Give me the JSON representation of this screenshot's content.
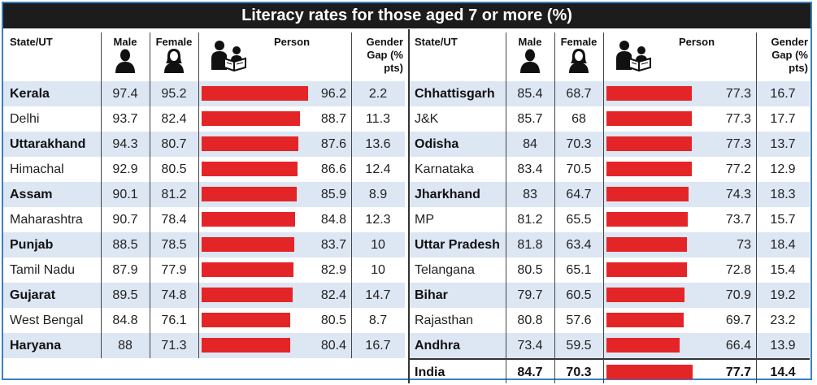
{
  "chart_data": {
    "type": "table",
    "title": "Literacy rates for those aged 7 or more (%)",
    "columns": [
      "State/UT",
      "Male",
      "Female",
      "Person",
      "Gender Gap (% pts)"
    ],
    "rows_left": [
      {
        "state": "Kerala",
        "male": "97.4",
        "female": "95.2",
        "person": "96.2",
        "gap": "2.2"
      },
      {
        "state": "Delhi",
        "male": "93.7",
        "female": "82.4",
        "person": "88.7",
        "gap": "11.3"
      },
      {
        "state": "Uttarakhand",
        "male": "94.3",
        "female": "80.7",
        "person": "87.6",
        "gap": "13.6"
      },
      {
        "state": "Himachal",
        "male": "92.9",
        "female": "80.5",
        "person": "86.6",
        "gap": "12.4"
      },
      {
        "state": "Assam",
        "male": "90.1",
        "female": "81.2",
        "person": "85.9",
        "gap": "8.9"
      },
      {
        "state": "Maharashtra",
        "male": "90.7",
        "female": "78.4",
        "person": "84.8",
        "gap": "12.3"
      },
      {
        "state": "Punjab",
        "male": "88.5",
        "female": "78.5",
        "person": "83.7",
        "gap": "10"
      },
      {
        "state": "Tamil Nadu",
        "male": "87.9",
        "female": "77.9",
        "person": "82.9",
        "gap": "10"
      },
      {
        "state": "Gujarat",
        "male": "89.5",
        "female": "74.8",
        "person": "82.4",
        "gap": "14.7"
      },
      {
        "state": "West Bengal",
        "male": "84.8",
        "female": "76.1",
        "person": "80.5",
        "gap": "8.7"
      },
      {
        "state": "Haryana",
        "male": "88",
        "female": "71.3",
        "person": "80.4",
        "gap": "16.7"
      }
    ],
    "rows_right": [
      {
        "state": "Chhattisgarh",
        "male": "85.4",
        "female": "68.7",
        "person": "77.3",
        "gap": "16.7"
      },
      {
        "state": "J&K",
        "male": "85.7",
        "female": "68",
        "person": "77.3",
        "gap": "17.7"
      },
      {
        "state": "Odisha",
        "male": "84",
        "female": "70.3",
        "person": "77.3",
        "gap": "13.7"
      },
      {
        "state": "Karnataka",
        "male": "83.4",
        "female": "70.5",
        "person": "77.2",
        "gap": "12.9"
      },
      {
        "state": "Jharkhand",
        "male": "83",
        "female": "64.7",
        "person": "74.3",
        "gap": "18.3"
      },
      {
        "state": "MP",
        "male": "81.2",
        "female": "65.5",
        "person": "73.7",
        "gap": "15.7"
      },
      {
        "state": "Uttar Pradesh",
        "male": "81.8",
        "female": "63.4",
        "person": "73",
        "gap": "18.4"
      },
      {
        "state": "Telangana",
        "male": "80.5",
        "female": "65.1",
        "person": "72.8",
        "gap": "15.4"
      },
      {
        "state": "Bihar",
        "male": "79.7",
        "female": "60.5",
        "person": "70.9",
        "gap": "19.2"
      },
      {
        "state": "Rajasthan",
        "male": "80.8",
        "female": "57.6",
        "person": "69.7",
        "gap": "23.2"
      },
      {
        "state": "Andhra",
        "male": "73.4",
        "female": "59.5",
        "person": "66.4",
        "gap": "13.9"
      }
    ],
    "total": {
      "state": "India",
      "male": "84.7",
      "female": "70.3",
      "person": "77.7",
      "gap": "14.4"
    },
    "bar_color": "#e42528",
    "stripe_color": "#dde6f3"
  }
}
